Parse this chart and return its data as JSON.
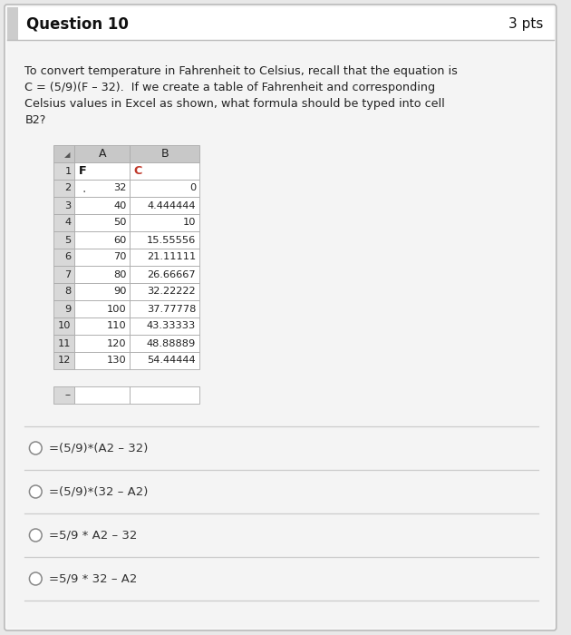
{
  "title": "Question 10",
  "pts": "3 pts",
  "question_text": [
    "To convert temperature in Fahrenheit to Celsius, recall that the equation is",
    "C = (5/9)(F – 32).  If we create a table of Fahrenheit and corresponding",
    "Celsius values in Excel as shown, what formula should be typed into cell",
    "B2?"
  ],
  "col_A_data": [
    "32",
    "40",
    "50",
    "60",
    "70",
    "80",
    "90",
    "100",
    "110",
    "120",
    "130"
  ],
  "col_B_data": [
    "0",
    "4.444444",
    "10",
    "15.55556",
    "21.11111",
    "26.66667",
    "32.22222",
    "37.77778",
    "43.33333",
    "48.88889",
    "54.44444"
  ],
  "options": [
    "=(5/9)*(A2 – 32)",
    "=(5/9)*(32 – A2)",
    "=5/9 * A2 – 32",
    "=5/9 * 32 – A2"
  ],
  "outer_bg": "#e8e8e8",
  "card_bg": "#f7f7f7",
  "title_bar_bg": "#ffffff",
  "content_bg": "#f4f4f4",
  "table_header_bg": "#c8c8c8",
  "table_row_num_bg": "#d8d8d8",
  "table_cell_bg": "#ffffff",
  "table_border": "#aaaaaa",
  "title_color": "#111111",
  "text_color": "#222222",
  "option_text_color": "#333333",
  "sep_color": "#cccccc",
  "radio_edge": "#888888"
}
